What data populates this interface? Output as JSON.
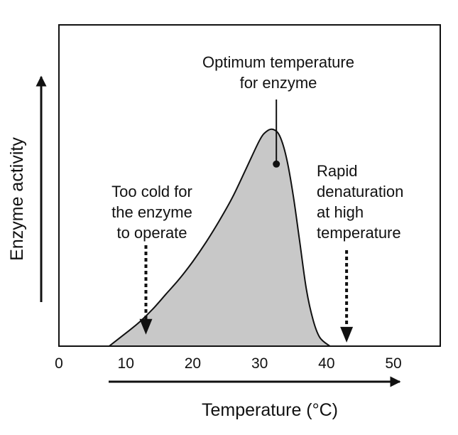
{
  "colors": {
    "fill": "#c8c8c8",
    "ink": "#111111",
    "background": "#ffffff"
  },
  "chart_data": {
    "type": "area",
    "title": "",
    "xlabel": "Temperature (°C)",
    "ylabel": "Enzyme activity",
    "xlim": [
      0,
      57
    ],
    "x_ticks": [
      "0",
      "10",
      "20",
      "30",
      "40",
      "50"
    ],
    "y_ticks": [],
    "grid": false,
    "x": [
      7.5,
      10,
      12,
      14,
      16,
      18,
      20,
      22,
      24,
      26,
      28,
      30,
      31,
      32,
      33,
      34,
      35,
      36,
      37,
      38,
      39,
      40.5
    ],
    "y": [
      0,
      0.06,
      0.11,
      0.17,
      0.24,
      0.31,
      0.39,
      0.48,
      0.58,
      0.69,
      0.82,
      0.95,
      0.99,
      1.0,
      0.97,
      0.87,
      0.7,
      0.48,
      0.26,
      0.12,
      0.04,
      0
    ],
    "annotations": [
      {
        "id": "optimum",
        "lines": [
          "Optimum temperature",
          "for enzyme"
        ],
        "x": 32.5,
        "y": 0.84
      },
      {
        "id": "cold",
        "lines": [
          "Too cold for",
          "the enzyme",
          "to operate"
        ],
        "x": 13,
        "y": 0.06
      },
      {
        "id": "denaturation",
        "lines": [
          "Rapid",
          "denaturation",
          "at high",
          "temperature"
        ],
        "x": 43,
        "y": 0.03
      }
    ]
  }
}
